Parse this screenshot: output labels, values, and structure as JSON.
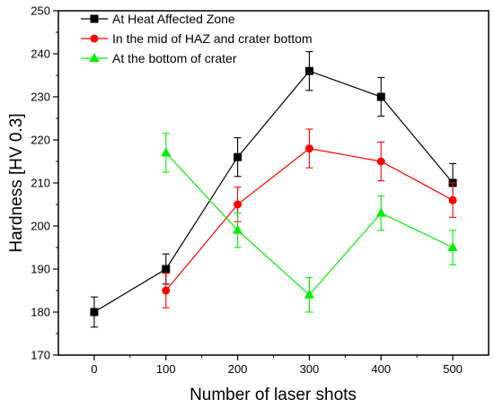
{
  "chart_data": {
    "type": "line",
    "xlabel": "Number of laser shots",
    "ylabel": "Hardness [HV 0.3]",
    "xlim": [
      -50,
      550
    ],
    "ylim": [
      170,
      250
    ],
    "xticks": [
      0,
      100,
      200,
      300,
      400,
      500
    ],
    "yticks": [
      170,
      180,
      190,
      200,
      210,
      220,
      230,
      240,
      250
    ],
    "legend_position": "top-left",
    "grid": false,
    "series": [
      {
        "name": "At Heat Affected Zone",
        "color": "#000000",
        "marker": "square",
        "x": [
          0,
          100,
          200,
          300,
          400,
          500
        ],
        "values": [
          180,
          190,
          216,
          236,
          230,
          210
        ],
        "errors": [
          3.5,
          3.5,
          4.5,
          4.5,
          4.5,
          4.5
        ]
      },
      {
        "name": "In the mid of HAZ and crater bottom",
        "color": "#ff0000",
        "marker": "circle",
        "x": [
          100,
          200,
          300,
          400,
          500
        ],
        "values": [
          185,
          205,
          218,
          215,
          206
        ],
        "errors": [
          4,
          4,
          4.5,
          4.5,
          4
        ]
      },
      {
        "name": "At the bottom of crater",
        "color": "#00ee00",
        "marker": "triangle",
        "x": [
          100,
          200,
          300,
          400,
          500
        ],
        "values": [
          217,
          199,
          184,
          203,
          195
        ],
        "errors": [
          4.5,
          4,
          4,
          4,
          4
        ]
      }
    ]
  }
}
